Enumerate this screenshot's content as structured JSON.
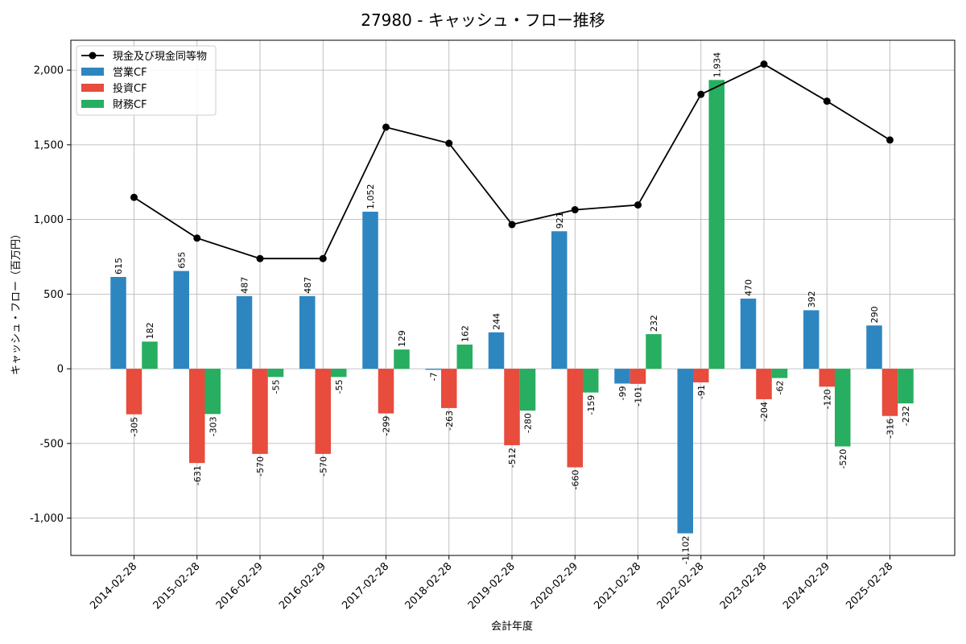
{
  "chart_data": {
    "type": "bar",
    "title": "27980 - キャッシュ・フロー推移",
    "xlabel": "会計年度",
    "ylabel": "キャッシュ・フロー（百万円）",
    "ylim": [
      -1250,
      2200
    ],
    "yticks": [
      -1000,
      -500,
      0,
      500,
      1000,
      1500,
      2000
    ],
    "ytick_labels": [
      "-1,000",
      "-500",
      "0",
      "500",
      "1,000",
      "1,500",
      "2,000"
    ],
    "grid": true,
    "legend_position": "top-left",
    "categories": [
      "2014-02-28",
      "2015-02-28",
      "2016-02-29",
      "2016-02-29",
      "2017-02-28",
      "2018-02-28",
      "2019-02-28",
      "2020-02-29",
      "2021-02-28",
      "2022-02-28",
      "2023-02-28",
      "2024-02-29",
      "2025-02-28"
    ],
    "bar_series": [
      {
        "name": "営業CF",
        "color": "#2e86c1",
        "values": [
          615,
          655,
          487,
          487,
          1052,
          -7,
          244,
          921,
          -99,
          -1102,
          470,
          392,
          290
        ],
        "labels": [
          "615",
          "655",
          "487",
          "487",
          "1,052",
          "-7",
          "244",
          "921",
          "-99",
          "-1,102",
          "470",
          "392",
          "290"
        ]
      },
      {
        "name": "投資CF",
        "color": "#e74c3c",
        "values": [
          -305,
          -631,
          -570,
          -570,
          -299,
          -263,
          -512,
          -660,
          -101,
          -91,
          -204,
          -120,
          -316
        ],
        "labels": [
          "-305",
          "-631",
          "-570",
          "-570",
          "-299",
          "-263",
          "-512",
          "-660",
          "-101",
          "-91",
          "-204",
          "-120",
          "-316"
        ]
      },
      {
        "name": "財務CF",
        "color": "#27ae60",
        "values": [
          182,
          -303,
          -55,
          -55,
          129,
          162,
          -280,
          -159,
          232,
          1934,
          -62,
          -520,
          -232
        ],
        "labels": [
          "182",
          "-303",
          "-55",
          "-55",
          "129",
          "162",
          "-280",
          "-159",
          "232",
          "1,934",
          "-62",
          "-520",
          "-232"
        ]
      }
    ],
    "line_series": {
      "name": "現金及び現金同等物",
      "color": "#000000",
      "values": [
        1148,
        875,
        738,
        738,
        1618,
        1510,
        966,
        1065,
        1097,
        1838,
        2040,
        1792,
        1532
      ]
    }
  }
}
